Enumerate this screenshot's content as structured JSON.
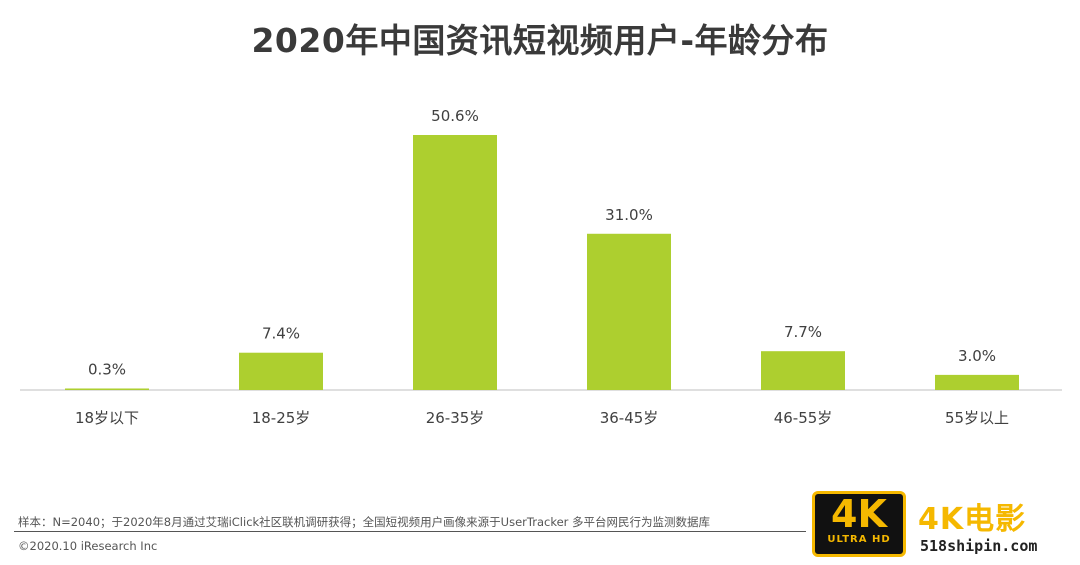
{
  "title": "2020年中国资讯短视频用户-年龄分布",
  "chart_data": {
    "type": "bar",
    "categories": [
      "18岁以下",
      "18-25岁",
      "26-35岁",
      "36-45岁",
      "46-55岁",
      "55岁以上"
    ],
    "values": [
      0.3,
      7.4,
      50.6,
      31.0,
      7.7,
      3.0
    ],
    "value_labels": [
      "0.3%",
      "7.4%",
      "50.6%",
      "31.0%",
      "7.7%",
      "3.0%"
    ],
    "title": "2020年中国资讯短视频用户-年龄分布",
    "ylim": [
      0,
      50.6
    ],
    "grid": false,
    "bar_color": "#adcf2f"
  },
  "footnote": "样本：N=2040；于2020年8月通过艾瑞iClick社区联机调研获得；全国短视频用户画像来源于UserTracker 多平台网民行为监测数据库",
  "copyright": "©2020.10 iResearch Inc",
  "watermark": {
    "badge_big": "4K",
    "badge_small": "ULTRA HD",
    "text": "4K电影",
    "url": "518shipin.com",
    "color": "#f5b800"
  }
}
